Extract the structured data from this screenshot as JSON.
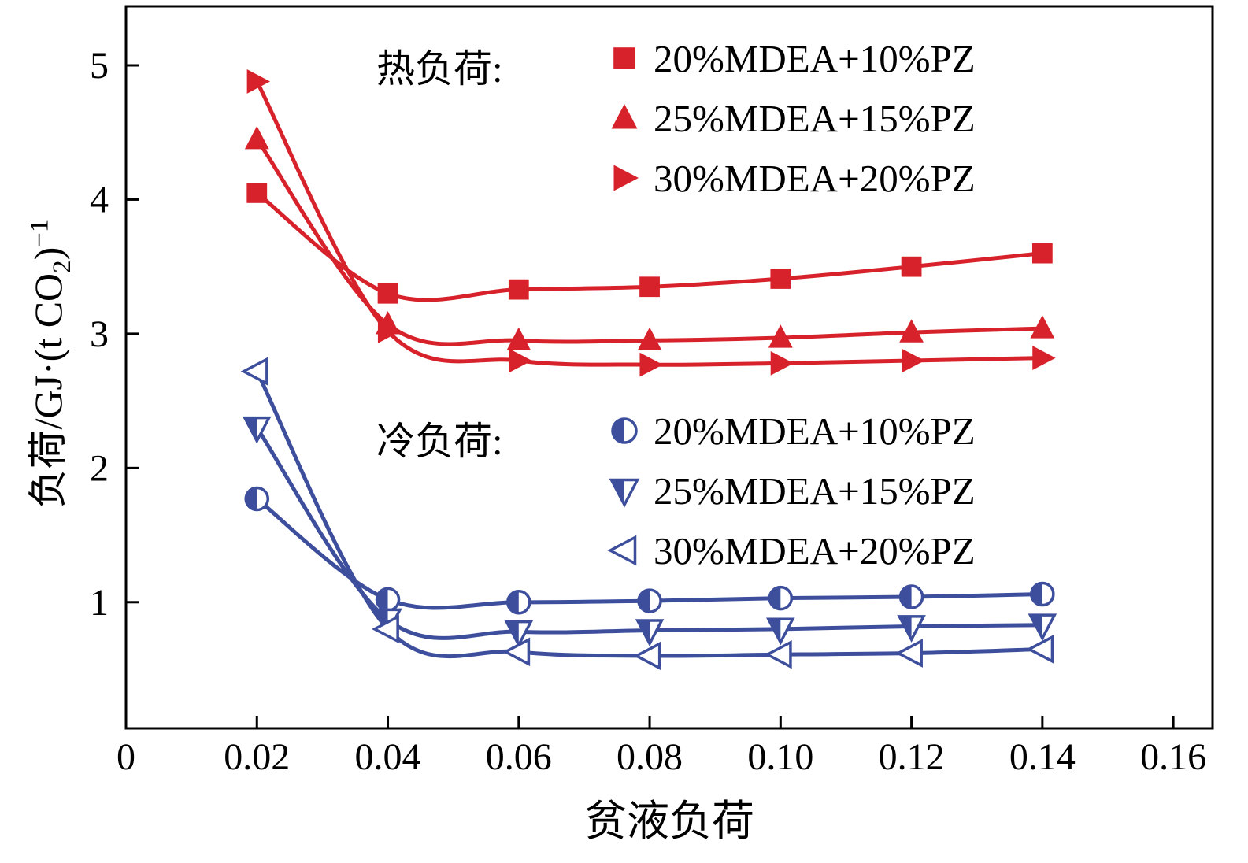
{
  "figure": {
    "background": "#ffffff"
  },
  "chart_data": {
    "type": "line",
    "title": "",
    "xlabel": "贫液负荷",
    "ylabel": {
      "pre": "负荷/GJ·(t CO",
      "sub": "2",
      "mid": ")",
      "sup": "−1"
    },
    "xlim": [
      0,
      0.166
    ],
    "ylim": [
      0.06,
      5.44
    ],
    "grid": false,
    "legend_position": "inside-top-right",
    "x_ticks": {
      "values": [
        0,
        0.02,
        0.04,
        0.06,
        0.08,
        0.1,
        0.12,
        0.14,
        0.16
      ],
      "labels": [
        "0",
        "0.02",
        "0.04",
        "0.06",
        "0.08",
        "0.10",
        "0.12",
        "0.14",
        "0.16"
      ]
    },
    "y_ticks": {
      "values": [
        1,
        2,
        3,
        4,
        5
      ],
      "labels": [
        "1",
        "2",
        "3",
        "4",
        "5"
      ]
    },
    "colors": {
      "heat": "#d7222b",
      "cold": "#3d4e9c",
      "axis": "#000000"
    },
    "legend": {
      "heat_title": "热负荷:",
      "cold_title": "冷负荷:"
    },
    "series": [
      {
        "group": "heat",
        "label": "20%MDEA+10%PZ",
        "marker": "square-filled",
        "x": [
          0.02,
          0.04,
          0.06,
          0.08,
          0.1,
          0.12,
          0.14
        ],
        "y": [
          4.05,
          3.3,
          3.33,
          3.35,
          3.41,
          3.5,
          3.6
        ]
      },
      {
        "group": "heat",
        "label": "25%MDEA+15%PZ",
        "marker": "triangle-up-filled",
        "x": [
          0.02,
          0.04,
          0.06,
          0.08,
          0.1,
          0.12,
          0.14
        ],
        "y": [
          4.45,
          3.07,
          2.95,
          2.95,
          2.97,
          3.01,
          3.04
        ]
      },
      {
        "group": "heat",
        "label": "30%MDEA+20%PZ",
        "marker": "triangle-right-filled",
        "x": [
          0.02,
          0.04,
          0.06,
          0.08,
          0.1,
          0.12,
          0.14
        ],
        "y": [
          4.88,
          3.02,
          2.8,
          2.77,
          2.78,
          2.8,
          2.82
        ]
      },
      {
        "group": "cold",
        "label": "20%MDEA+10%PZ",
        "marker": "circle-half",
        "x": [
          0.02,
          0.04,
          0.06,
          0.08,
          0.1,
          0.12,
          0.14
        ],
        "y": [
          1.77,
          1.02,
          1.0,
          1.01,
          1.03,
          1.04,
          1.06
        ]
      },
      {
        "group": "cold",
        "label": "25%MDEA+15%PZ",
        "marker": "triangle-down-half",
        "x": [
          0.02,
          0.04,
          0.06,
          0.08,
          0.1,
          0.12,
          0.14
        ],
        "y": [
          2.3,
          0.87,
          0.78,
          0.79,
          0.8,
          0.82,
          0.83
        ]
      },
      {
        "group": "cold",
        "label": "30%MDEA+20%PZ",
        "marker": "triangle-left-open",
        "x": [
          0.02,
          0.04,
          0.06,
          0.08,
          0.1,
          0.12,
          0.14
        ],
        "y": [
          2.72,
          0.8,
          0.63,
          0.6,
          0.61,
          0.62,
          0.65
        ]
      }
    ]
  }
}
